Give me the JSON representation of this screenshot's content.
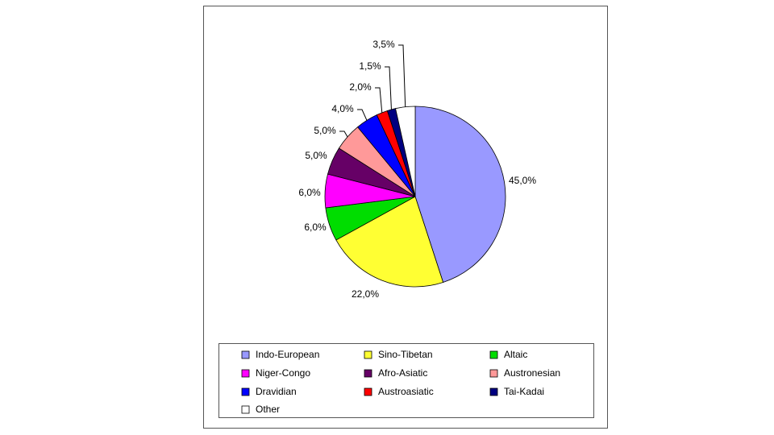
{
  "chart_data": {
    "type": "pie",
    "categories": [
      "Indo-European",
      "Sino-Tibetan",
      "Altaic",
      "Niger-Congo",
      "Afro-Asiatic",
      "Austronesian",
      "Dravidian",
      "Austroasiatic",
      "Tai-Kadai",
      "Other"
    ],
    "values": [
      45,
      22,
      6,
      6,
      5,
      5,
      4,
      2,
      1.5,
      3.5
    ],
    "value_labels": [
      "45,0%",
      "22,0%",
      "6,0%",
      "6,0%",
      "5,0%",
      "5,0%",
      "4,0%",
      "2,0%",
      "1,5%",
      "3,5%"
    ],
    "colors": [
      "#9999ff",
      "#ffff33",
      "#00dd00",
      "#ff00ff",
      "#660066",
      "#ff9999",
      "#0000ff",
      "#ff0000",
      "#000080",
      "#ffffff"
    ],
    "legend": "bottom"
  }
}
